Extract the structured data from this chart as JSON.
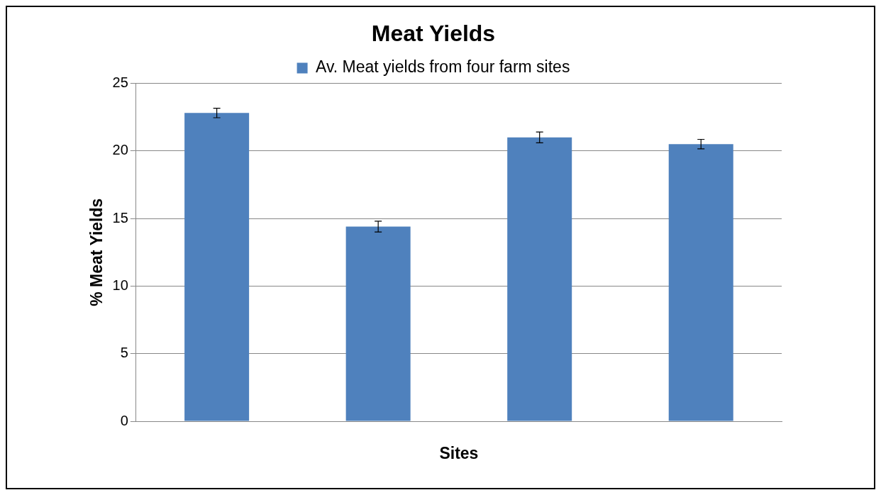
{
  "chart_data": {
    "type": "bar",
    "title": "Meat Yields",
    "xlabel": "Sites",
    "ylabel": "% Meat Yields",
    "categories": [
      null,
      null,
      null,
      null
    ],
    "series": [
      {
        "name": "Av. Meat yields from four farm sites",
        "color": "#4f81bd",
        "values": [
          22.8,
          14.4,
          21.0,
          20.5
        ],
        "errors": [
          0.35,
          0.4,
          0.4,
          0.35
        ]
      }
    ],
    "ylim": [
      0,
      25
    ],
    "yticks": [
      0,
      5,
      10,
      15,
      20,
      25
    ],
    "grid": "y",
    "legend": "top"
  }
}
